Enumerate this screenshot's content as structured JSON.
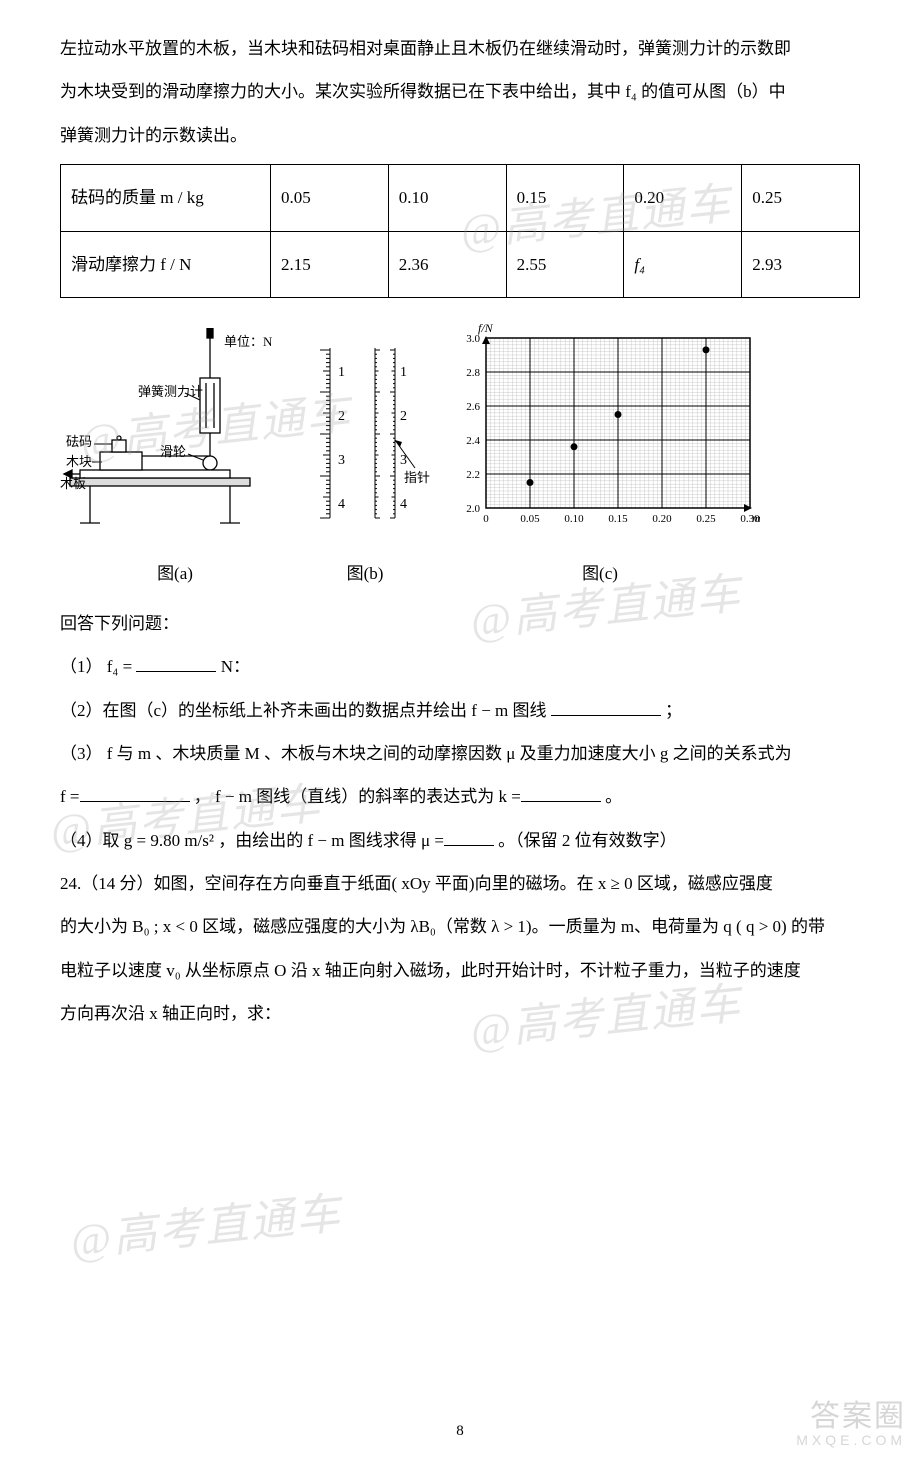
{
  "watermark_text": "@高考直通车",
  "intro": {
    "p1": "左拉动水平放置的木板，当木块和砝码相对桌面静止且木板仍在继续滑动时，弹簧测力计的示数即",
    "p2": "为木块受到的滑动摩擦力的大小。某次实验所得数据已在下表中给出，其中 f₄ 的值可从图（b）中",
    "p3": "弹簧测力计的示数读出。"
  },
  "table": {
    "row1_head": "砝码的质量 m / kg",
    "row2_head": "滑动摩擦力 f / N",
    "cols": [
      "0.05",
      "0.10",
      "0.15",
      "0.20",
      "0.25"
    ],
    "fvals": [
      "2.15",
      "2.36",
      "2.55",
      "f₄",
      "2.93"
    ]
  },
  "figA": {
    "label": "图(a)",
    "t_spring": "弹簧测力计",
    "t_weight": "砝码",
    "t_block": "木块",
    "t_board": "木板",
    "t_pulley": "滑轮",
    "unit": "单位：N",
    "colors": {
      "stroke": "#000000",
      "fill_gray": "#dddddd",
      "fill_white": "#ffffff"
    }
  },
  "figB": {
    "label": "图(b)",
    "ticks_left": [
      "1",
      "2",
      "3",
      "4"
    ],
    "ticks_right": [
      "1",
      "2",
      "3",
      "4"
    ],
    "pointer_label": "指针",
    "pointer_y": 100,
    "colors": {
      "stroke": "#000000"
    }
  },
  "figC": {
    "label": "图(c)",
    "ylabel": "f/N",
    "xlabel": "m/kg",
    "yticks": [
      "2.0",
      "2.2",
      "2.4",
      "2.6",
      "2.8",
      "3.0"
    ],
    "xticks": [
      "0",
      "0.05",
      "0.10",
      "0.15",
      "0.20",
      "0.25",
      "0.30"
    ],
    "points": [
      {
        "x": 0.05,
        "y": 2.15
      },
      {
        "x": 0.1,
        "y": 2.36
      },
      {
        "x": 0.15,
        "y": 2.55
      },
      {
        "x": 0.25,
        "y": 2.93
      }
    ],
    "xlim": [
      0,
      0.3
    ],
    "ylim": [
      2.0,
      3.0
    ],
    "colors": {
      "bg": "#ffffff",
      "fine_grid": "#bfbfbf",
      "major_grid": "#000000",
      "axis": "#000000",
      "point": "#000000",
      "text": "#000000"
    },
    "font_size": 11
  },
  "questions": {
    "lead": "回答下列问题：",
    "q1_a": "（1） f₄ =",
    "q1_b": "N：",
    "q2_a": "（2）在图（c）的坐标纸上补齐未画出的数据点并绘出 f − m 图线",
    "q2_b": "；",
    "q3_a": "（3） f 与 m 、木块质量 M 、木板与木块之间的动摩擦因数 μ 及重力加速度大小 g 之间的关系式为",
    "q3_b": "f =",
    "q3_c": "， f − m 图线（直线）的斜率的表达式为 k =",
    "q3_d": "。",
    "q4_a": "（4）取 g = 9.80 m/s² ，由绘出的 f − m 图线求得 μ =",
    "q4_b": "。（保留 2 位有效数字）"
  },
  "p24": {
    "l1": "24.（14 分）如图，空间存在方向垂直于纸面( xOy 平面)向里的磁场。在 x ≥ 0 区域，磁感应强度",
    "l2": "的大小为 B₀ ; x < 0 区域，磁感应强度的大小为 λB₀（常数 λ > 1)。一质量为 m、电荷量为 q ( q > 0) 的带",
    "l3": "电粒子以速度 v₀ 从坐标原点 O 沿 x 轴正向射入磁场，此时开始计时，不计粒子重力，当粒子的速度",
    "l4": "方向再次沿 x 轴正向时，求："
  },
  "pagenum": "8",
  "corner": {
    "main": "答案圈",
    "sub": "MXQE.COM"
  }
}
